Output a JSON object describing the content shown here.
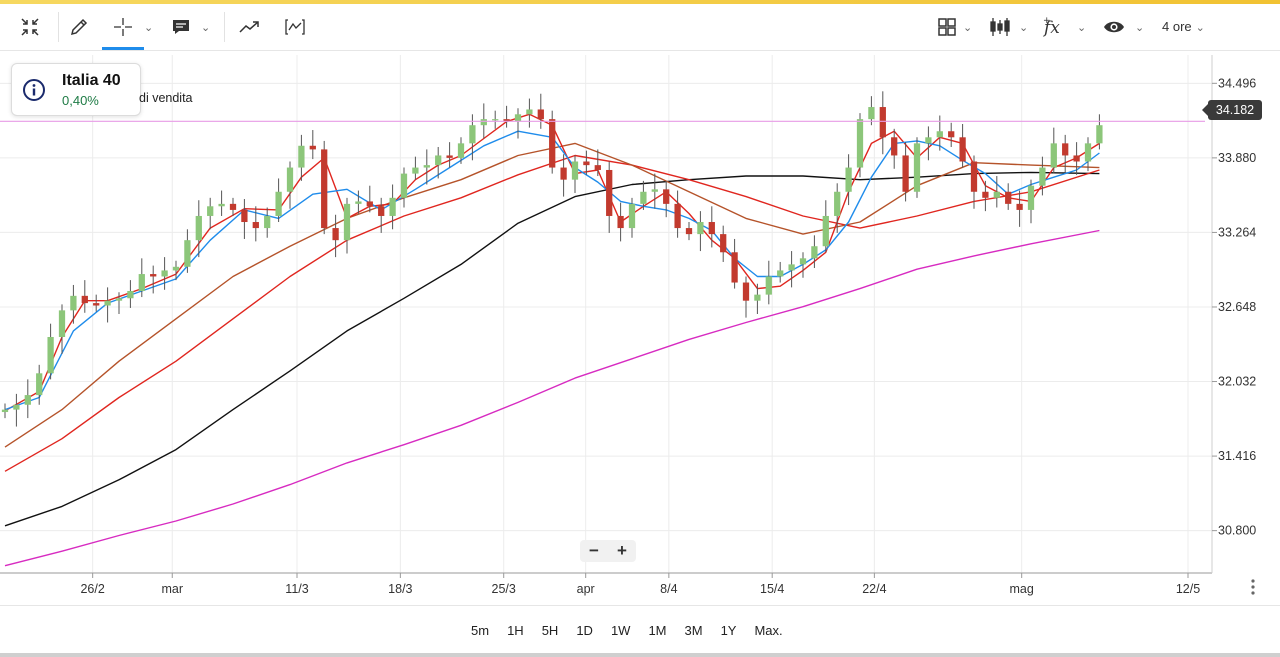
{
  "toolbar": {
    "timeframe_label": "4 ore"
  },
  "info": {
    "instrument": "Italia 40",
    "change": "0,40%",
    "overlay_text": "di vendita"
  },
  "price_tag": "34.182",
  "zoom": {
    "minus": "−",
    "plus": "+"
  },
  "ranges": [
    "5m",
    "1H",
    "5H",
    "1D",
    "1W",
    "1M",
    "3M",
    "1Y",
    "Max."
  ],
  "colors": {
    "up": "#8cc67a",
    "down": "#c23a2e",
    "blue_ma": "#1f8ceb",
    "red_ma": "#e0261f",
    "brown_ma": "#b5532a",
    "black_ma": "#111111",
    "magenta_ma": "#d72bc1",
    "price_line": "#e79ce6"
  },
  "chart_data": {
    "type": "line",
    "y_ticks": [
      "34.496",
      "33.880",
      "33.264",
      "32.648",
      "32.032",
      "31.416",
      "30.800"
    ],
    "ylim": [
      30.45,
      34.73
    ],
    "x_ticks": [
      "26/2",
      "mar",
      "11/3",
      "18/3",
      "25/3",
      "apr",
      "8/4",
      "15/4",
      "22/4",
      "mag",
      "12/5"
    ],
    "current_price": 34.182,
    "xlim": [
      0,
      100
    ],
    "x_tick_positions": [
      7.8,
      14.5,
      25.0,
      33.7,
      42.4,
      49.3,
      56.3,
      65.0,
      73.6,
      86.0,
      100
    ],
    "series": [
      {
        "key": "price_close",
        "x": [
          0,
          1,
          2,
          3,
          4,
          5,
          6,
          7,
          8,
          9,
          10,
          11,
          12,
          13,
          14,
          15,
          16,
          17,
          18,
          19,
          20,
          21,
          22,
          23,
          24,
          25,
          26,
          27,
          28,
          29,
          30,
          31,
          32,
          33,
          34,
          35,
          36,
          37,
          38,
          39,
          40,
          41,
          42,
          43,
          44,
          45,
          46,
          47,
          48,
          49,
          50,
          51,
          52,
          53,
          54,
          55,
          56,
          57,
          58,
          59,
          60,
          61,
          62,
          63,
          64,
          65,
          66,
          67,
          68,
          69,
          70,
          71,
          72,
          73,
          74,
          75,
          76,
          77,
          78,
          79,
          80,
          81,
          82,
          83,
          84,
          85,
          86,
          87,
          88,
          89,
          90,
          91,
          92,
          93,
          94,
          95,
          96
        ],
        "y": [
          31.8,
          31.84,
          31.92,
          32.1,
          32.4,
          32.62,
          32.74,
          32.68,
          32.66,
          32.7,
          32.72,
          32.78,
          32.92,
          32.9,
          32.95,
          32.98,
          33.2,
          33.4,
          33.48,
          33.5,
          33.45,
          33.35,
          33.3,
          33.4,
          33.6,
          33.8,
          33.98,
          33.95,
          33.3,
          33.2,
          33.5,
          33.52,
          33.48,
          33.4,
          33.55,
          33.75,
          33.8,
          33.82,
          33.9,
          33.88,
          34.0,
          34.15,
          34.2,
          34.2,
          34.18,
          34.24,
          34.28,
          34.2,
          33.8,
          33.7,
          33.85,
          33.82,
          33.78,
          33.4,
          33.3,
          33.5,
          33.6,
          33.62,
          33.5,
          33.3,
          33.25,
          33.35,
          33.25,
          33.1,
          32.85,
          32.7,
          32.75,
          32.9,
          32.95,
          33.0,
          33.05,
          33.15,
          33.4,
          33.6,
          33.8,
          34.2,
          34.3,
          34.05,
          33.9,
          33.6,
          34.0,
          34.05,
          34.1,
          34.05,
          33.85,
          33.6,
          33.55,
          33.6,
          33.5,
          33.45,
          33.65,
          33.8,
          34.0,
          33.9,
          33.85,
          34.0,
          34.15
        ]
      },
      {
        "key": "blue_ma",
        "x": [
          0,
          3,
          6,
          9,
          12,
          15,
          18,
          21,
          24,
          27,
          30,
          33,
          36,
          39,
          42,
          45,
          48,
          50,
          52,
          54,
          56,
          58,
          60,
          62,
          64,
          66,
          68,
          70,
          72,
          74,
          76,
          78,
          80,
          82,
          84,
          86,
          88,
          90,
          92,
          94,
          96
        ],
        "y": [
          31.8,
          31.9,
          32.45,
          32.68,
          32.78,
          32.88,
          33.2,
          33.45,
          33.38,
          33.58,
          33.62,
          33.45,
          33.62,
          33.8,
          33.98,
          34.1,
          34.05,
          33.8,
          33.68,
          33.52,
          33.48,
          33.45,
          33.38,
          33.28,
          33.05,
          32.9,
          32.9,
          33.0,
          33.12,
          33.35,
          33.72,
          34.0,
          34.02,
          33.98,
          33.86,
          33.75,
          33.58,
          33.66,
          33.72,
          33.78,
          33.92
        ]
      },
      {
        "key": "red_fast_ma",
        "x": [
          0,
          3,
          5,
          7,
          9,
          12,
          15,
          18,
          21,
          24,
          26,
          28,
          30,
          32,
          34,
          36,
          38,
          40,
          42,
          44,
          46,
          48,
          50,
          52,
          54,
          56,
          58,
          60,
          62,
          64,
          66,
          68,
          70,
          72,
          74,
          76,
          78,
          80,
          82,
          84,
          86,
          88,
          90,
          92,
          94,
          96
        ],
        "y": [
          31.79,
          31.95,
          32.4,
          32.7,
          32.7,
          32.8,
          32.92,
          33.3,
          33.46,
          33.45,
          33.72,
          33.88,
          33.38,
          33.48,
          33.5,
          33.7,
          33.82,
          33.9,
          34.04,
          34.18,
          34.24,
          34.15,
          33.75,
          33.78,
          33.35,
          33.48,
          33.6,
          33.42,
          33.2,
          33.05,
          32.8,
          32.82,
          32.95,
          33.1,
          33.6,
          34.0,
          34.1,
          33.88,
          34.05,
          34.0,
          33.65,
          33.55,
          33.52,
          33.8,
          33.88,
          34.0
        ]
      },
      {
        "key": "brown_ma",
        "x": [
          0,
          5,
          10,
          15,
          20,
          25,
          30,
          35,
          40,
          45,
          50,
          55,
          60,
          65,
          70,
          75,
          80,
          85,
          90,
          96
        ],
        "y": [
          31.49,
          31.8,
          32.2,
          32.55,
          32.9,
          33.15,
          33.38,
          33.55,
          33.7,
          33.9,
          34.0,
          33.82,
          33.6,
          33.38,
          33.25,
          33.35,
          33.65,
          33.84,
          33.82,
          33.8
        ]
      },
      {
        "key": "red_slow_ma",
        "x": [
          0,
          5,
          10,
          15,
          20,
          25,
          30,
          35,
          40,
          45,
          50,
          55,
          60,
          65,
          70,
          75,
          80,
          85,
          90,
          96
        ],
        "y": [
          31.29,
          31.56,
          31.9,
          32.2,
          32.55,
          32.9,
          33.2,
          33.4,
          33.55,
          33.74,
          33.9,
          33.82,
          33.7,
          33.56,
          33.4,
          33.3,
          33.4,
          33.52,
          33.6,
          33.78
        ]
      },
      {
        "key": "black_ma",
        "x": [
          0,
          5,
          10,
          15,
          20,
          25,
          30,
          35,
          40,
          45,
          50,
          55,
          60,
          65,
          70,
          75,
          80,
          85,
          90,
          96
        ],
        "y": [
          30.84,
          31.0,
          31.22,
          31.47,
          31.8,
          32.12,
          32.45,
          32.72,
          33.0,
          33.34,
          33.56,
          33.66,
          33.7,
          33.73,
          33.73,
          33.7,
          33.72,
          33.75,
          33.76,
          33.75
        ]
      },
      {
        "key": "magenta_ma",
        "x": [
          0,
          5,
          10,
          15,
          20,
          25,
          30,
          35,
          40,
          45,
          50,
          55,
          60,
          65,
          70,
          75,
          80,
          85,
          90,
          96
        ],
        "y": [
          30.51,
          30.63,
          30.76,
          30.88,
          31.02,
          31.18,
          31.36,
          31.51,
          31.67,
          31.86,
          32.06,
          32.22,
          32.38,
          32.52,
          32.65,
          32.8,
          32.96,
          33.07,
          33.17,
          33.28
        ]
      }
    ]
  }
}
